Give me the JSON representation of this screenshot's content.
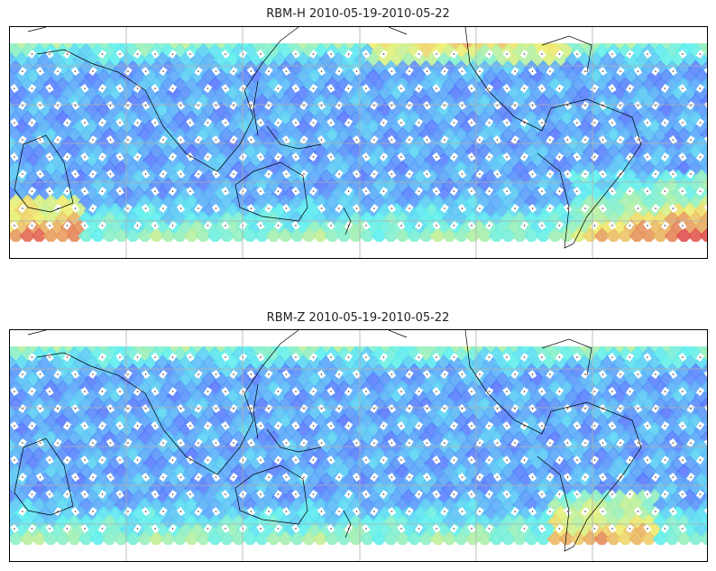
{
  "panels": [
    {
      "title": "RBM-H 2010-05-19-2010-05-22",
      "variant": "H"
    },
    {
      "title": "RBM-Z 2010-05-19-2010-05-22",
      "variant": "Z"
    }
  ],
  "colors": {
    "low": "#5a6cff",
    "mid": "#5ef0f0",
    "high": "#f0f070",
    "max": "#e05050",
    "grid": "#b0b0b0",
    "coast": "#000000"
  }
}
